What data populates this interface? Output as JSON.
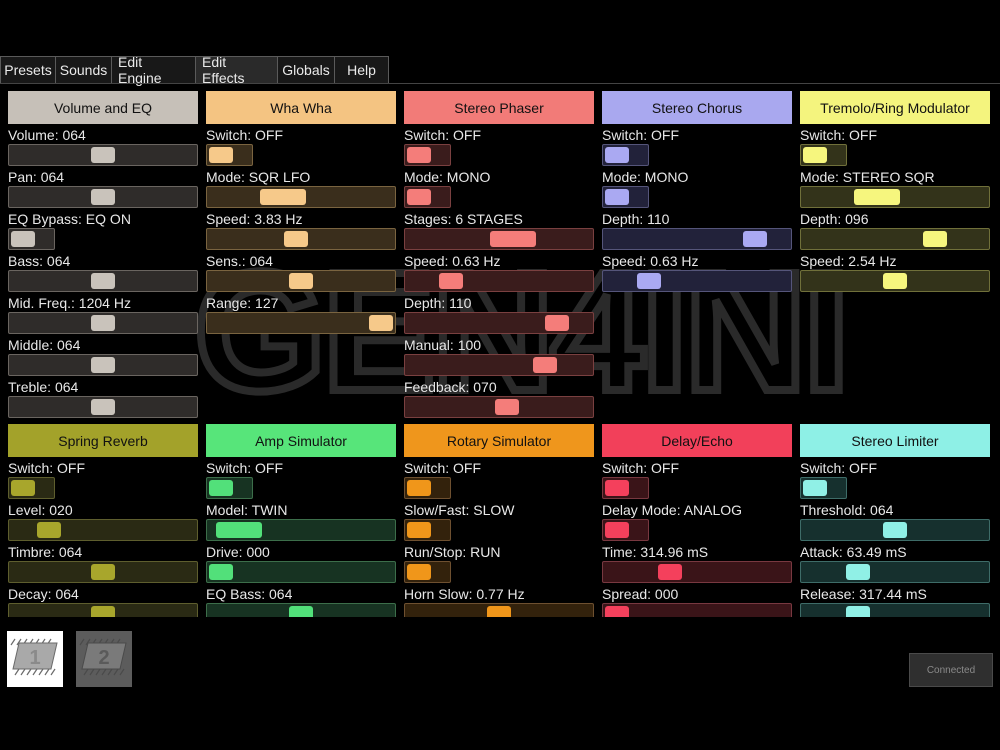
{
  "tabs": [
    {
      "label": "Presets",
      "active": false
    },
    {
      "label": "Sounds",
      "active": false
    },
    {
      "label": "Edit Engine",
      "active": false
    },
    {
      "label": "Edit Effects",
      "active": true
    },
    {
      "label": "Globals",
      "active": false
    },
    {
      "label": "Help",
      "active": false
    }
  ],
  "watermark_text": "GEN4INI",
  "panels": [
    {
      "id": "volume-and-eq",
      "title": "Volume and EQ",
      "color": "#c6c0b8",
      "thumb": "#c9c3bb",
      "trackbg": "#2f2c2a",
      "border": "#6a6560",
      "controls": [
        {
          "label": "Volume: 064",
          "type": "slider",
          "value": 0.5
        },
        {
          "label": "Pan: 064",
          "type": "slider",
          "value": 0.5
        },
        {
          "label": "EQ Bypass: EQ ON",
          "type": "switch",
          "value": 0
        },
        {
          "label": "Bass: 064",
          "type": "slider",
          "value": 0.5
        },
        {
          "label": "Mid. Freq.: 1204 Hz",
          "type": "slider",
          "value": 0.5
        },
        {
          "label": "Middle: 064",
          "type": "slider",
          "value": 0.5
        },
        {
          "label": "Treble: 064",
          "type": "slider",
          "value": 0.5
        }
      ]
    },
    {
      "id": "wha-wha",
      "title": "Wha Wha",
      "color": "#f4c482",
      "thumb": "#f6c98a",
      "trackbg": "#3a2e1c",
      "border": "#7a6440",
      "controls": [
        {
          "label": "Switch: OFF",
          "type": "switch",
          "value": 0
        },
        {
          "label": "Mode: SQR LFO",
          "type": "slider",
          "value": 0.37,
          "wide": true
        },
        {
          "label": "Speed: 3.83 Hz",
          "type": "slider",
          "value": 0.47
        },
        {
          "label": "Sens.: 064",
          "type": "slider",
          "value": 0.5
        },
        {
          "label": "Range: 127",
          "type": "slider",
          "value": 1.0
        }
      ]
    },
    {
      "id": "stereo-phaser",
      "title": "Stereo Phaser",
      "color": "#f27b78",
      "thumb": "#f47d7a",
      "trackbg": "#3a1c1c",
      "border": "#7a4040",
      "controls": [
        {
          "label": "Switch: OFF",
          "type": "switch",
          "value": 0
        },
        {
          "label": "Mode: MONO",
          "type": "switch",
          "value": 0
        },
        {
          "label": "Stages: 6 STAGES",
          "type": "slider",
          "value": 0.6,
          "wide": true
        },
        {
          "label": "Speed: 0.63 Hz",
          "type": "slider",
          "value": 0.2
        },
        {
          "label": "Depth: 110",
          "type": "slider",
          "value": 0.86
        },
        {
          "label": "Manual: 100",
          "type": "slider",
          "value": 0.79
        },
        {
          "label": "Feedback: 070",
          "type": "slider",
          "value": 0.55
        }
      ]
    },
    {
      "id": "stereo-chorus",
      "title": "Stereo Chorus",
      "color": "#a9a8ef",
      "thumb": "#aaa9f2",
      "trackbg": "#22223a",
      "border": "#55557a",
      "controls": [
        {
          "label": "Switch: OFF",
          "type": "switch",
          "value": 0
        },
        {
          "label": "Mode: MONO",
          "type": "switch",
          "value": 0
        },
        {
          "label": "Depth: 110",
          "type": "slider",
          "value": 0.86
        },
        {
          "label": "Speed: 0.63 Hz",
          "type": "slider",
          "value": 0.2
        }
      ]
    },
    {
      "id": "tremolo-ring-modulator",
      "title": "Tremolo/Ring Modulator",
      "color": "#f4f47e",
      "thumb": "#f6f67e",
      "trackbg": "#33331a",
      "border": "#70703a",
      "controls": [
        {
          "label": "Switch: OFF",
          "type": "switch",
          "value": 0
        },
        {
          "label": "Mode: STEREO SQR",
          "type": "slider",
          "value": 0.37,
          "wide": true
        },
        {
          "label": "Depth: 096",
          "type": "slider",
          "value": 0.75
        },
        {
          "label": "Speed: 2.54 Hz",
          "type": "slider",
          "value": 0.5
        }
      ]
    },
    {
      "id": "spring-reverb",
      "title": "Spring Reverb",
      "color": "#a3a22a",
      "thumb": "#a8a62c",
      "trackbg": "#2a2a14",
      "border": "#5e5e2e",
      "controls": [
        {
          "label": "Switch: OFF",
          "type": "switch",
          "value": 0
        },
        {
          "label": "Level: 020",
          "type": "slider",
          "value": 0.16
        },
        {
          "label": "Timbre: 064",
          "type": "slider",
          "value": 0.5
        },
        {
          "label": "Decay: 064",
          "type": "slider",
          "value": 0.5
        }
      ]
    },
    {
      "id": "amp-simulator",
      "title": "Amp Simulator",
      "color": "#57e57a",
      "thumb": "#52e07a",
      "trackbg": "#173322",
      "border": "#3c6e4a",
      "controls": [
        {
          "label": "Switch: OFF",
          "type": "switch",
          "value": 0
        },
        {
          "label": "Model: TWIN",
          "type": "slider",
          "value": 0.05,
          "wide": true
        },
        {
          "label": "Drive: 000",
          "type": "slider",
          "value": 0.0
        },
        {
          "label": "EQ Bass: 064",
          "type": "slider",
          "value": 0.5
        }
      ]
    },
    {
      "id": "rotary-simulator",
      "title": "Rotary Simulator",
      "color": "#ef961c",
      "thumb": "#f0961a",
      "trackbg": "#33220c",
      "border": "#6e5030",
      "controls": [
        {
          "label": "Switch: OFF",
          "type": "switch",
          "value": 0
        },
        {
          "label": "Slow/Fast: SLOW",
          "type": "switch",
          "value": 0
        },
        {
          "label": "Run/Stop: RUN",
          "type": "switch",
          "value": 0
        },
        {
          "label": "Horn Slow: 0.77 Hz",
          "type": "slider",
          "value": 0.5
        }
      ]
    },
    {
      "id": "delay-echo",
      "title": "Delay/Echo",
      "color": "#f2405a",
      "thumb": "#f4405c",
      "trackbg": "#3a1418",
      "border": "#783840",
      "controls": [
        {
          "label": "Switch: OFF",
          "type": "switch",
          "value": 0
        },
        {
          "label": "Delay Mode: ANALOG",
          "type": "switch",
          "value": 0
        },
        {
          "label": "Time: 314.96 mS",
          "type": "slider",
          "value": 0.33
        },
        {
          "label": "Spread: 000",
          "type": "slider",
          "value": 0.0
        }
      ]
    },
    {
      "id": "stereo-limiter",
      "title": "Stereo Limiter",
      "color": "#8ef0e6",
      "thumb": "#90f0e6",
      "trackbg": "#16302e",
      "border": "#3e6c68",
      "controls": [
        {
          "label": "Switch: OFF",
          "type": "switch",
          "value": 0
        },
        {
          "label": "Threshold: 064",
          "type": "slider",
          "value": 0.5
        },
        {
          "label": "Attack: 63.49 mS",
          "type": "slider",
          "value": 0.27
        },
        {
          "label": "Release: 317.44 mS",
          "type": "slider",
          "value": 0.27
        }
      ]
    }
  ],
  "banks": [
    {
      "label": "1",
      "active": true
    },
    {
      "label": "2",
      "active": false
    }
  ],
  "status": "Connected"
}
